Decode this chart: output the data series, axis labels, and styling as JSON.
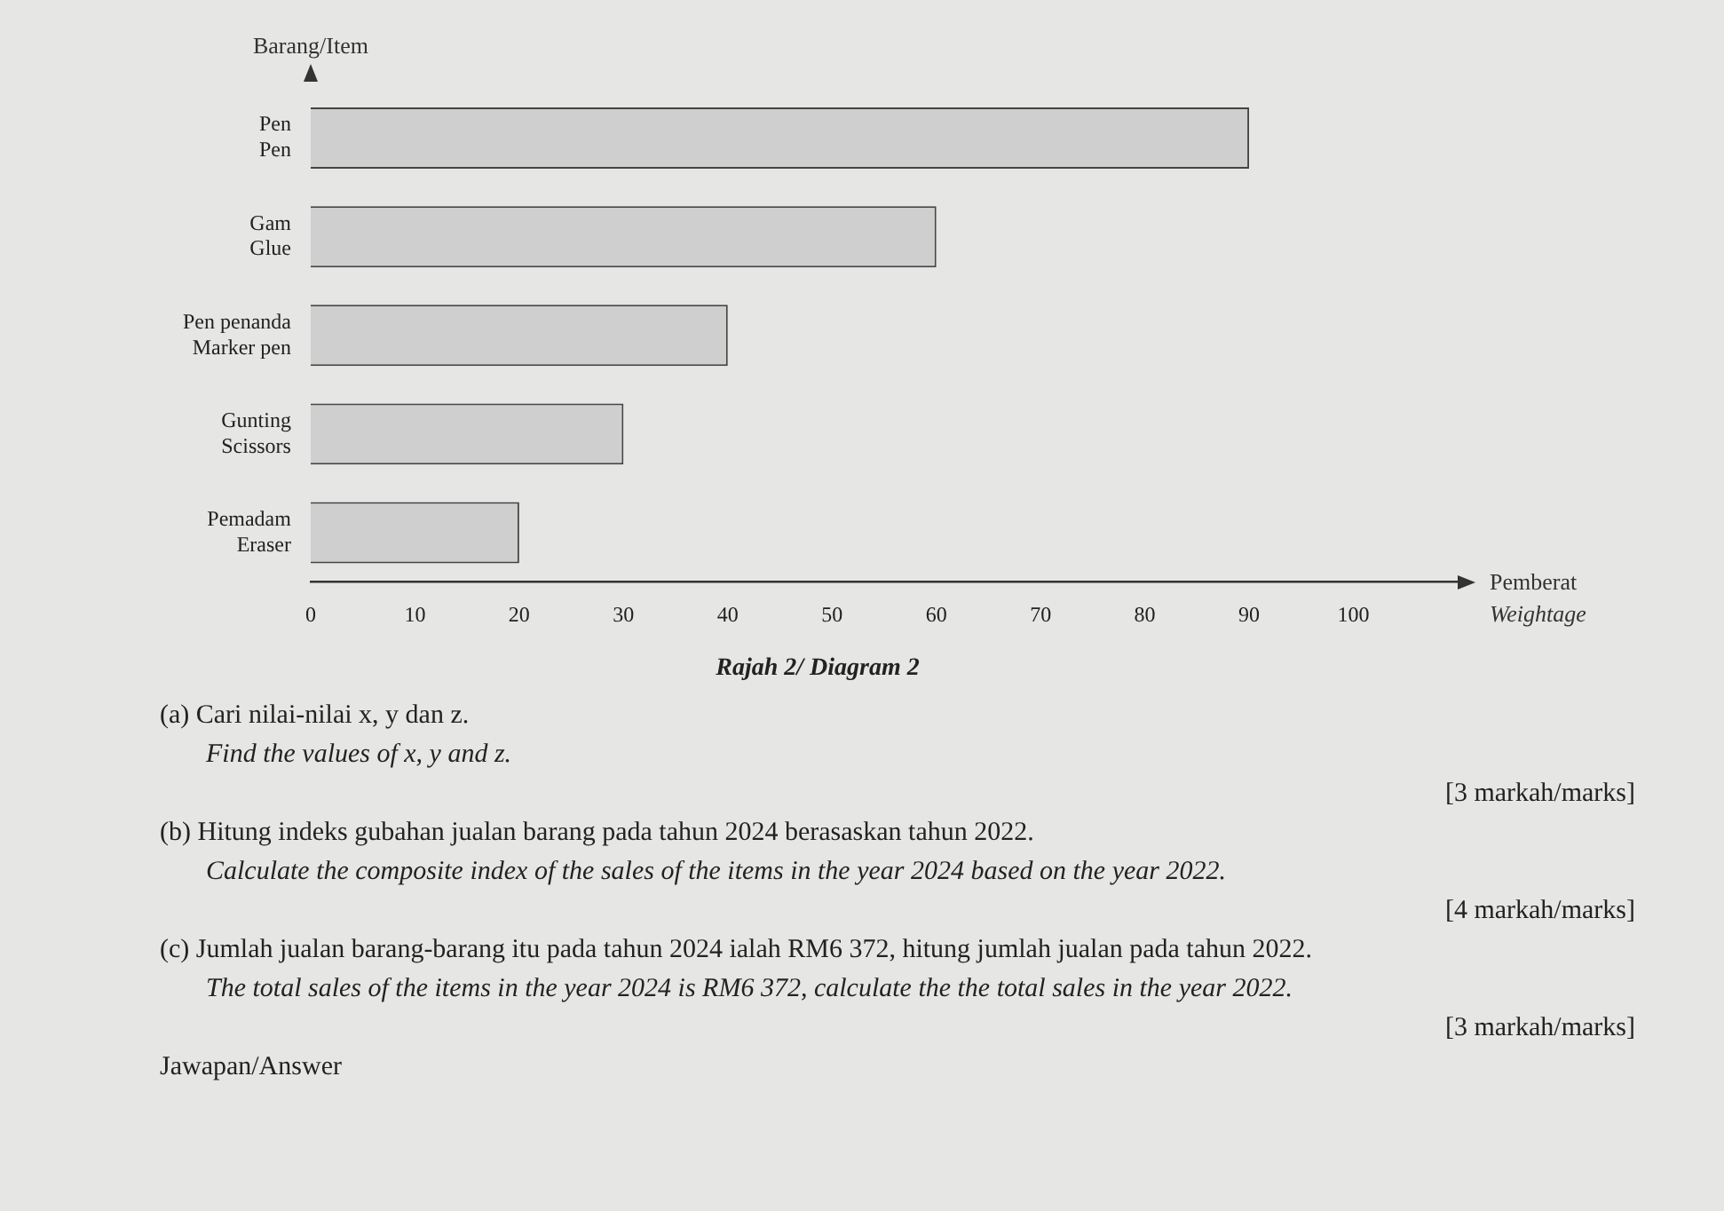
{
  "chart_data": {
    "type": "bar",
    "orientation": "horizontal",
    "title": "Rajah 2/ Diagram 2",
    "ylabel": "Barang/Item",
    "xlabel": "Pemberat\nWeightage",
    "categories": [
      "Pen\nPen",
      "Gam\nGlue",
      "Pen penanda\nMarker pen",
      "Gunting\nScissors",
      "Pemadam\nEraser"
    ],
    "values": [
      90,
      60,
      40,
      30,
      20
    ],
    "color": "#cfcfcf",
    "xlim": [
      0,
      110
    ],
    "xticks": [
      0,
      10,
      20,
      30,
      40,
      50,
      60,
      70,
      80,
      90,
      100
    ],
    "grid": false,
    "legend": false,
    "annotations": [
      "(a) Cari nilai-nilai x, y dan z.",
      "Find the values of x, y and z.",
      "[3 markah/marks]",
      "(b) Hitung indeks gubahan jualan barang pada tahun 2024 berasaskan tahun 2022.",
      "Calculate the composite index of the sales of the items in the year 2024 based on the year 2022.",
      "[4 markah/marks]",
      "(c) Jumlah jualan barang-barang itu pada tahun 2024 ialah RM6 372, hitung jumlah jualan pada tahun 2022.",
      "The total sales of the items in the year 2024 is RM6 372, calculate the the total sales in the year 2022.",
      "[3 markah/marks]",
      "Jawapan/Answer"
    ]
  }
}
